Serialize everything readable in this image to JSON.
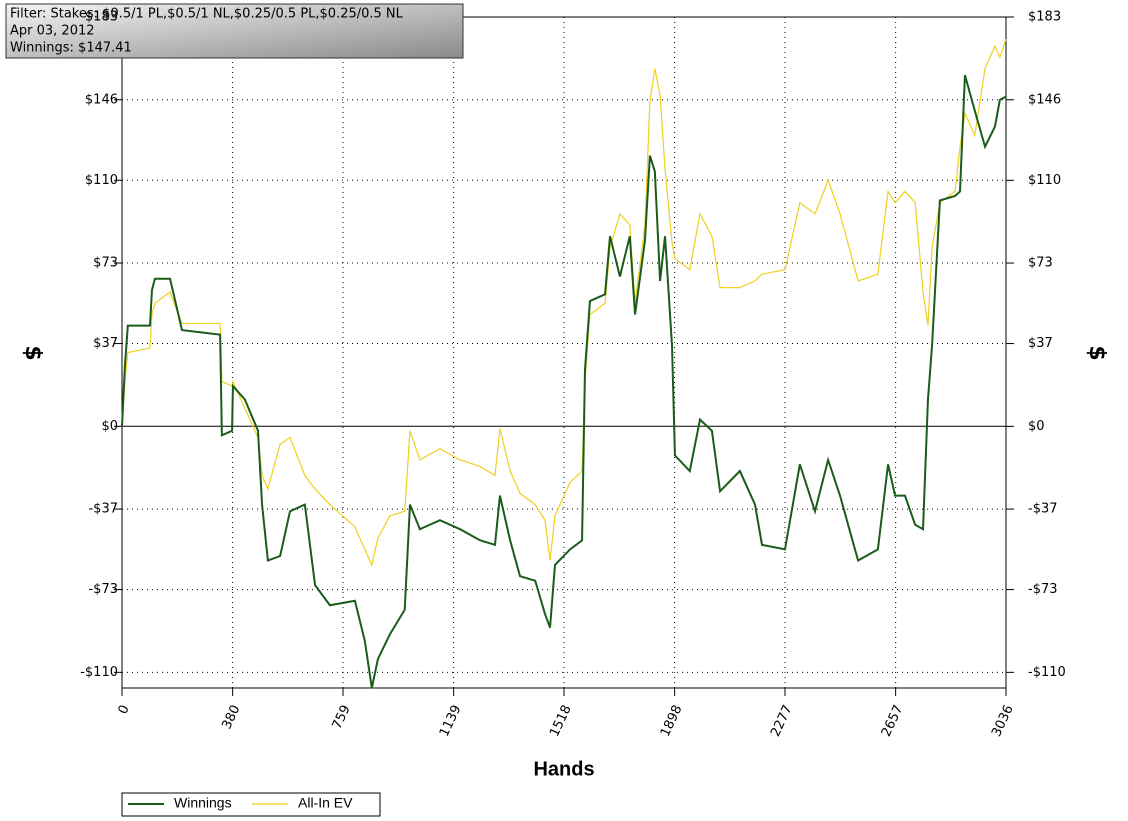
{
  "chart_data": {
    "type": "line",
    "annotations": [
      "Filter: Stakes: $0.5/1 PL,$0.5/1 NL,$0.25/0.5 PL,$0.25/0.5 NL",
      "Apr 03, 2012",
      "Winnings: $147.41"
    ],
    "x_label": "Hands",
    "y_label": "$",
    "y2_label": "$",
    "x": [
      0,
      10,
      20,
      96,
      103,
      113,
      165,
      206,
      337,
      343,
      378,
      381,
      422,
      467,
      481,
      501,
      543,
      577,
      628,
      663,
      714,
      800,
      834,
      858,
      879,
      920,
      971,
      989,
      1023,
      1092,
      1161,
      1230,
      1281,
      1298,
      1333,
      1367,
      1419,
      1453,
      1470,
      1487,
      1539,
      1580,
      1590,
      1607,
      1659,
      1676,
      1710,
      1744,
      1762,
      1796,
      1813,
      1830,
      1848,
      1865,
      1889,
      1899,
      1950,
      1985,
      2026,
      2054,
      2122,
      2174,
      2198,
      2277,
      2328,
      2380,
      2425,
      2466,
      2528,
      2596,
      2631,
      2655,
      2689,
      2724,
      2751,
      2768,
      2782,
      2809,
      2861,
      2878,
      2895,
      2929,
      2964,
      2998,
      3015,
      3036
    ],
    "series": [
      {
        "name": "Winnings",
        "color": "#1a5c1a",
        "values": [
          0,
          27,
          45,
          45,
          61,
          66,
          66,
          43,
          41,
          -4,
          -2,
          18,
          12,
          -2,
          -35,
          -60,
          -58,
          -38,
          -35,
          -71,
          -80,
          -78,
          -96,
          -117,
          -104,
          -93,
          -82,
          -35,
          -46,
          -42,
          -46,
          -51,
          -53,
          -31,
          -51,
          -67,
          -69,
          -84,
          -90,
          -62,
          -55,
          -51,
          25,
          56,
          59,
          85,
          67,
          85,
          50,
          83,
          121,
          114,
          65,
          85,
          36,
          -13,
          -20,
          3,
          -2,
          -29,
          -20,
          -35,
          -53,
          -55,
          -17,
          -38,
          -15,
          -31,
          -60,
          -55,
          -17,
          -31,
          -31,
          -44,
          -46,
          12,
          36,
          101,
          103,
          105,
          157,
          141,
          125,
          134,
          146,
          147.41
        ]
      },
      {
        "name": "All-In EV",
        "color": "#f0d020",
        "values": [
          0,
          20,
          33,
          35,
          50,
          55,
          60,
          46,
          46,
          20,
          18,
          20,
          8,
          -5,
          -22,
          -28,
          -8,
          -5,
          -22,
          -28,
          -35,
          -45,
          -55,
          -62,
          -50,
          -40,
          -38,
          -2,
          -15,
          -10,
          -15,
          -18,
          -22,
          -1,
          -20,
          -30,
          -35,
          -42,
          -60,
          -40,
          -25,
          -20,
          20,
          50,
          55,
          80,
          95,
          90,
          55,
          90,
          145,
          160,
          148,
          115,
          82,
          75,
          70,
          95,
          85,
          62,
          62,
          65,
          68,
          70,
          100,
          95,
          110,
          95,
          65,
          68,
          105,
          100,
          105,
          100,
          60,
          45,
          80,
          100,
          105,
          125,
          140,
          130,
          160,
          170,
          165,
          173
        ]
      }
    ],
    "xlim": [
      0,
      3036
    ],
    "xticks": [
      0,
      380,
      759,
      1139,
      1518,
      1898,
      2277,
      2657,
      3036
    ],
    "ylim": [
      -117,
      183
    ],
    "yticks": [
      {
        "value": 183,
        "label": "$183"
      },
      {
        "value": 146,
        "label": "$146"
      },
      {
        "value": 110,
        "label": "$110"
      },
      {
        "value": 73,
        "label": "$73"
      },
      {
        "value": 37,
        "label": "$37"
      },
      {
        "value": 0,
        "label": "$0"
      },
      {
        "value": -37,
        "label": "-$37"
      },
      {
        "value": -73,
        "label": "-$73"
      },
      {
        "value": -110,
        "label": "-$110"
      }
    ],
    "y2lim": [
      -117,
      183
    ],
    "y2ticks": [
      {
        "value": 183,
        "label": "$183"
      },
      {
        "value": 146,
        "label": "$146"
      },
      {
        "value": 110,
        "label": "$110"
      },
      {
        "value": 73,
        "label": "$73"
      },
      {
        "value": 37,
        "label": "$37"
      },
      {
        "value": 0,
        "label": "$0"
      },
      {
        "value": -37,
        "label": "-$37"
      },
      {
        "value": -73,
        "label": "-$73"
      },
      {
        "value": -110,
        "label": "-$110"
      }
    ],
    "grid": true
  }
}
